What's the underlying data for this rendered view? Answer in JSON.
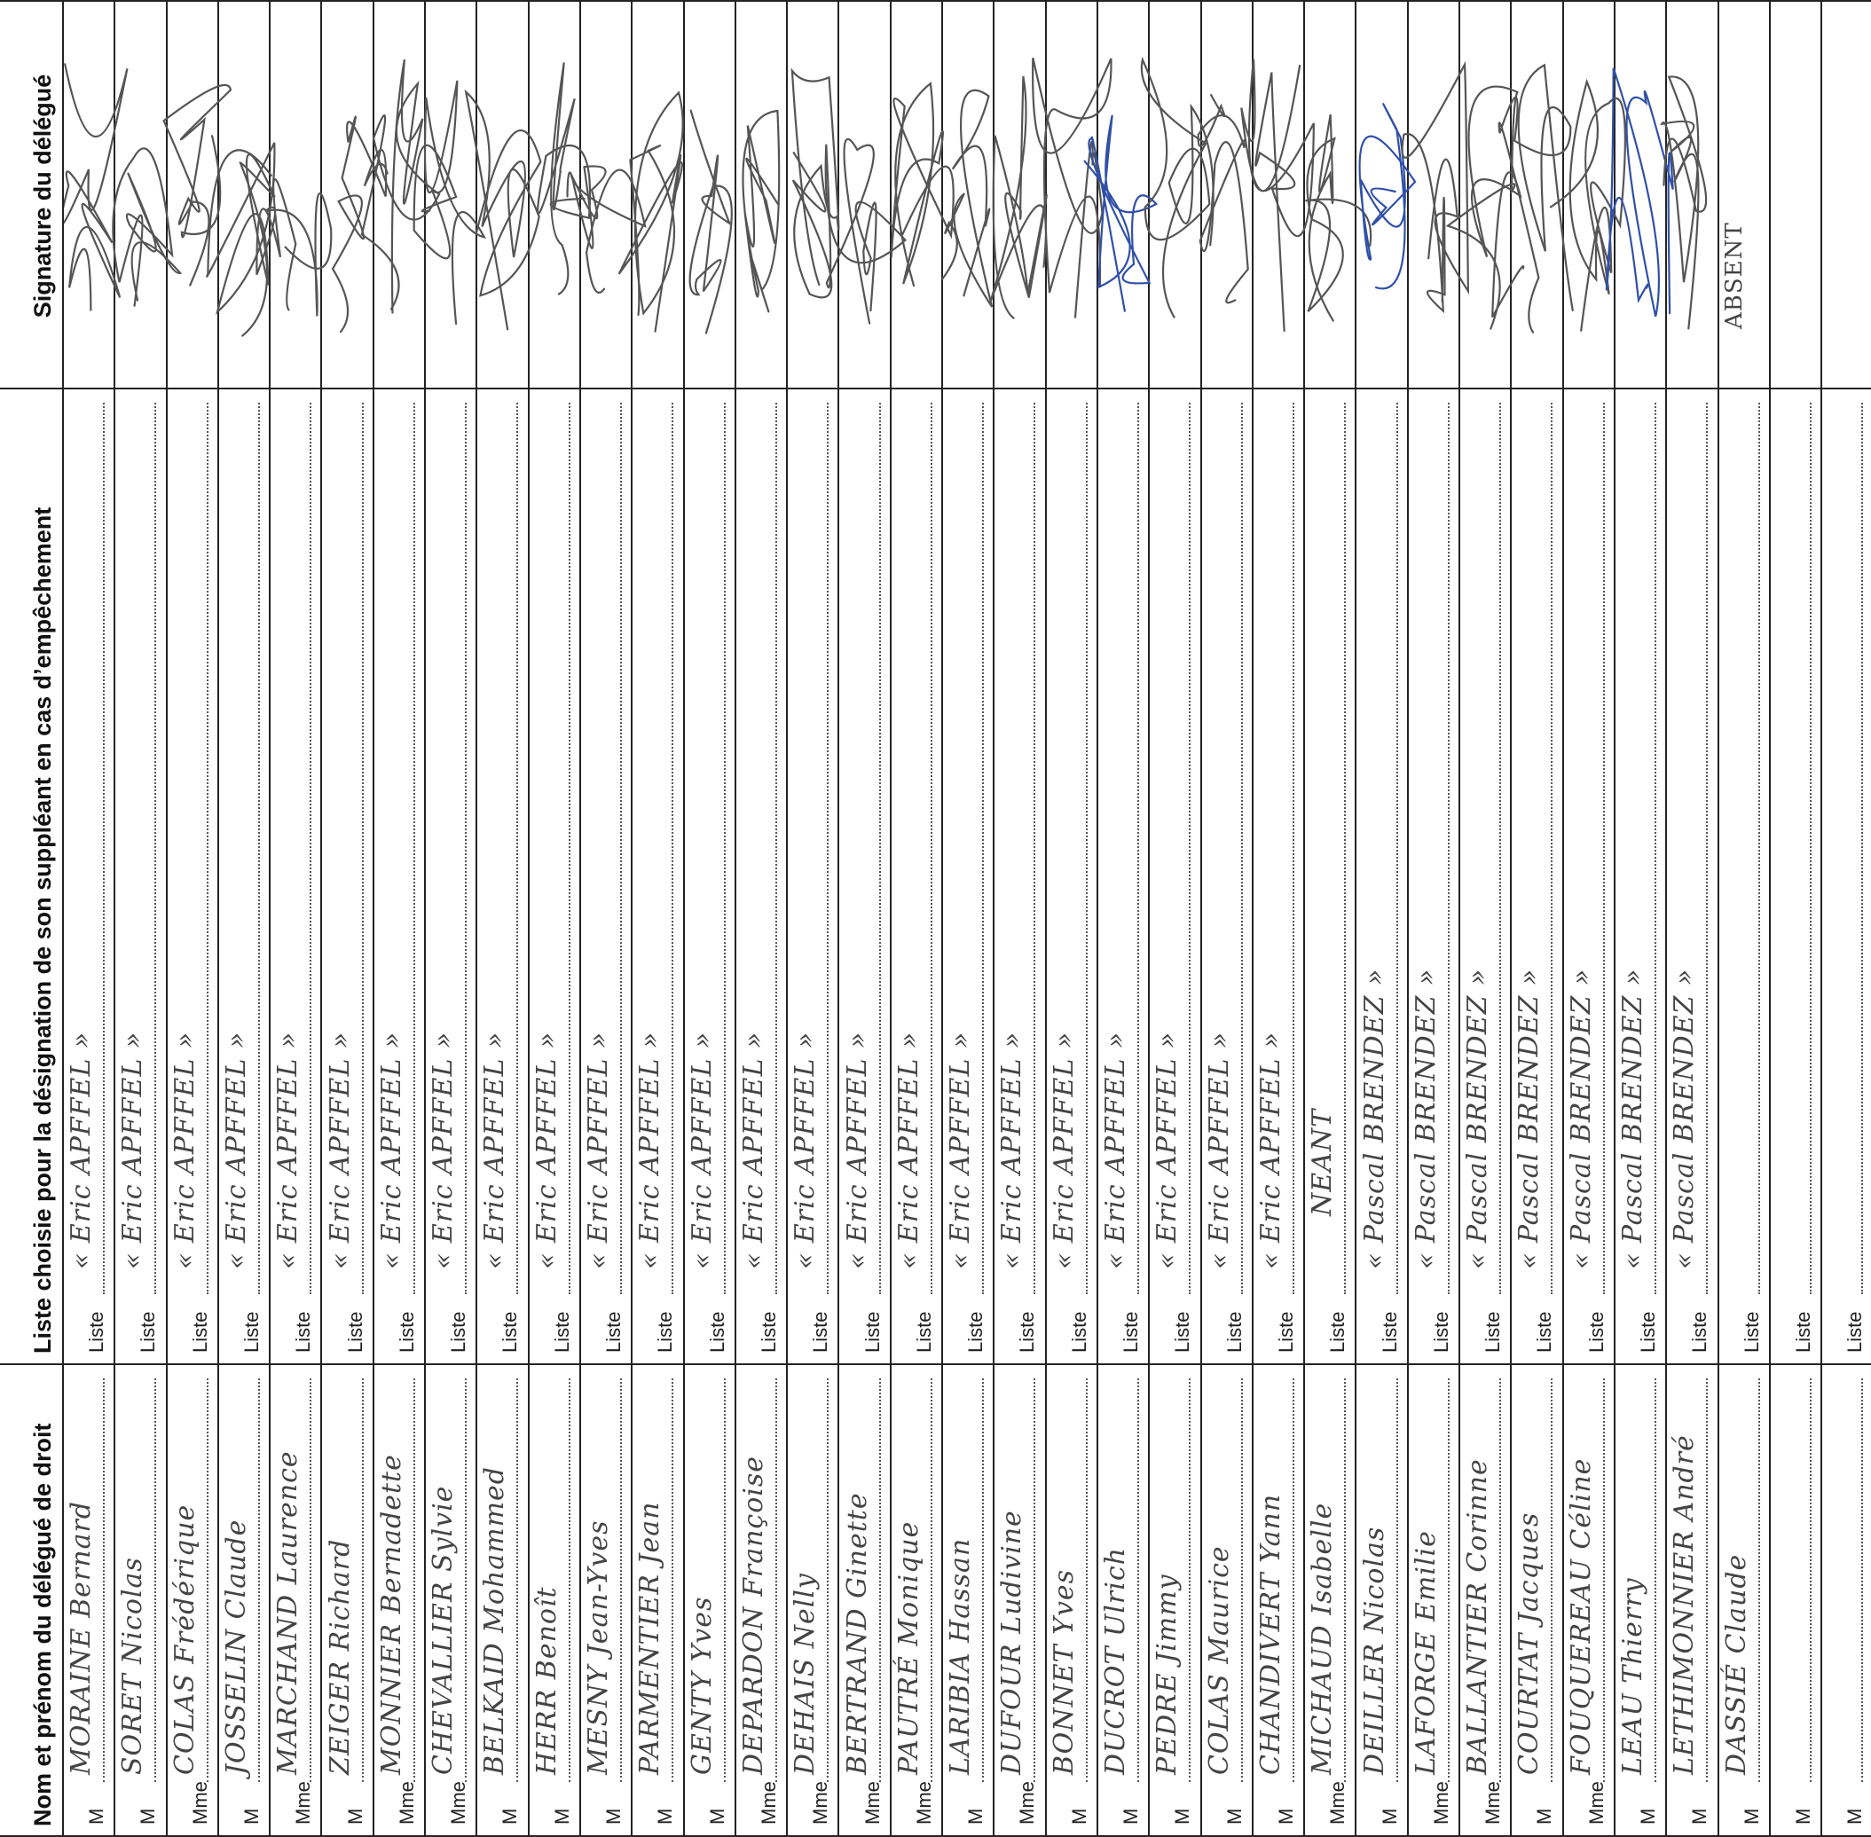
{
  "headers": {
    "name_col": "Nom et prénom du délégué de droit",
    "list_col": "Liste choisie pour la désignation de son suppléant en cas d’empêchement",
    "signature_col": "Signature du délégué"
  },
  "list_prefix": "Liste",
  "rows": [
    {
      "civility": "M",
      "name": "MORAINE Bernard",
      "list": "« Eric APFFEL »",
      "signed": true,
      "note": ""
    },
    {
      "civility": "M",
      "name": "SORET Nicolas",
      "list": "« Eric APFFEL »",
      "signed": true,
      "note": ""
    },
    {
      "civility": "Mme",
      "name": "COLAS Frédérique",
      "list": "« Eric APFFEL »",
      "signed": true,
      "note": ""
    },
    {
      "civility": "M",
      "name": "JOSSELIN Claude",
      "list": "« Eric APFFEL »",
      "signed": true,
      "note": ""
    },
    {
      "civility": "Mme",
      "name": "MARCHAND Laurence",
      "list": "« Eric APFFEL »",
      "signed": true,
      "note": ""
    },
    {
      "civility": "M",
      "name": "ZEIGER Richard",
      "list": "« Eric APFFEL »",
      "signed": true,
      "note": ""
    },
    {
      "civility": "Mme",
      "name": "MONNIER Bernadette",
      "list": "« Eric APFFEL »",
      "signed": true,
      "note": ""
    },
    {
      "civility": "Mme",
      "name": "CHEVALLIER Sylvie",
      "list": "« Eric APFFEL »",
      "signed": true,
      "note": ""
    },
    {
      "civility": "M",
      "name": "BELKAID Mohammed",
      "list": "« Eric APFFEL »",
      "signed": true,
      "note": ""
    },
    {
      "civility": "M",
      "name": "HERR Benoît",
      "list": "« Eric APFFEL »",
      "signed": true,
      "note": ""
    },
    {
      "civility": "M",
      "name": "MESNY Jean-Yves",
      "list": "« Eric APFFEL »",
      "signed": true,
      "note": ""
    },
    {
      "civility": "M",
      "name": "PARMENTIER Jean",
      "list": "« Eric APFFEL »",
      "signed": true,
      "note": ""
    },
    {
      "civility": "M",
      "name": "GENTY Yves",
      "list": "« Eric APFFEL »",
      "signed": true,
      "note": ""
    },
    {
      "civility": "Mme",
      "name": "DEPARDON Françoise",
      "list": "« Eric APFFEL »",
      "signed": true,
      "note": ""
    },
    {
      "civility": "Mme",
      "name": "DEHAIS Nelly",
      "list": "« Eric APFFEL »",
      "signed": true,
      "note": ""
    },
    {
      "civility": "Mme",
      "name": "BERTRAND Ginette",
      "list": "« Eric APFFEL »",
      "signed": true,
      "note": ""
    },
    {
      "civility": "Mme",
      "name": "PAUTRÉ Monique",
      "list": "« Eric APFFEL »",
      "signed": true,
      "note": ""
    },
    {
      "civility": "M",
      "name": "LARIBIA Hassan",
      "list": "« Eric APFFEL »",
      "signed": true,
      "note": ""
    },
    {
      "civility": "Mme",
      "name": "DUFOUR Ludivine",
      "list": "« Eric APFFEL »",
      "signed": true,
      "note": ""
    },
    {
      "civility": "M",
      "name": "BONNET Yves",
      "list": "« Eric APFFEL »",
      "signed": true,
      "note": ""
    },
    {
      "civility": "M",
      "name": "DUCROT Ulrich",
      "list": "« Eric APFFEL »",
      "signed": true,
      "note": ""
    },
    {
      "civility": "M",
      "name": "PEDRE Jimmy",
      "list": "« Eric APFFEL »",
      "signed": true,
      "note": ""
    },
    {
      "civility": "M",
      "name": "COLAS Maurice",
      "list": "« Eric APFFEL »",
      "signed": true,
      "note": ""
    },
    {
      "civility": "M",
      "name": "CHANDIVERT Yann",
      "list": "« Eric APFFEL »",
      "signed": true,
      "note": ""
    },
    {
      "civility": "Mme",
      "name": "MICHAUD Isabelle",
      "list": "NEANT",
      "signed": true,
      "note": ""
    },
    {
      "civility": "M",
      "name": "DEILLER Nicolas",
      "list": "« Pascal BRENDEZ »",
      "signed": true,
      "note": ""
    },
    {
      "civility": "Mme",
      "name": "LAFORGE Emilie",
      "list": "« Pascal BRENDEZ »",
      "signed": true,
      "note": ""
    },
    {
      "civility": "Mme",
      "name": "BALLANTIER Corinne",
      "list": "« Pascal BRENDEZ »",
      "signed": true,
      "note": ""
    },
    {
      "civility": "M",
      "name": "COURTAT Jacques",
      "list": "« Pascal BRENDEZ »",
      "signed": true,
      "note": ""
    },
    {
      "civility": "Mme",
      "name": "FOUQUEREAU Céline",
      "list": "« Pascal BRENDEZ »",
      "signed": true,
      "note": ""
    },
    {
      "civility": "M",
      "name": "LEAU Thierry",
      "list": "« Pascal BRENDEZ »",
      "signed": true,
      "note": ""
    },
    {
      "civility": "M",
      "name": "LETHIMONNIER André",
      "list": "« Pascal BRENDEZ »",
      "signed": true,
      "note": ""
    },
    {
      "civility": "M",
      "name": "DASSIÉ Claude",
      "list": "",
      "signed": false,
      "note": "ABSENT"
    },
    {
      "civility": "M",
      "name": "",
      "list": "",
      "signed": false,
      "note": ""
    },
    {
      "civility": "M",
      "name": "",
      "list": "",
      "signed": false,
      "note": ""
    }
  ],
  "signature_ink_colors": [
    "#555555",
    "#3050a8"
  ]
}
